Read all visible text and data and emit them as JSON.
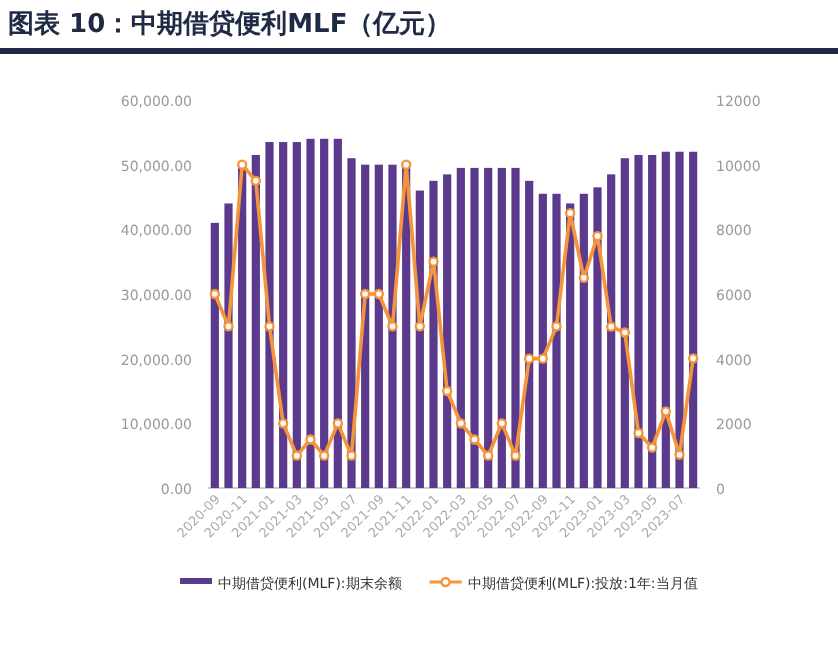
{
  "chart_data": {
    "type": "bar",
    "title": "图表 10：中期借贷便利MLF（亿元）",
    "categories": [
      "2020-09",
      null,
      "2020-11",
      null,
      "2021-01",
      null,
      "2021-03",
      null,
      "2021-05",
      null,
      "2021-07",
      null,
      "2021-09",
      null,
      "2021-11",
      null,
      "2022-01",
      null,
      "2022-03",
      null,
      "2022-05",
      null,
      "2022-07",
      null,
      "2022-09",
      null,
      "2022-11",
      null,
      "2023-01",
      null,
      "2023-03",
      null,
      "2023-05",
      null,
      "2023-07",
      null
    ],
    "series": [
      {
        "name": "中期借贷便利(MLF):期末余额",
        "color": "#5b3a8e",
        "values": [
          41000,
          44000,
          50500,
          51500,
          53500,
          53500,
          53500,
          54000,
          54000,
          54000,
          51000,
          50000,
          50000,
          50000,
          50000,
          46000,
          47500,
          48500,
          49500,
          49500,
          49500,
          49500,
          49500,
          47500,
          45500,
          45500,
          44000,
          45500,
          46500,
          48500,
          51000,
          51500,
          51500,
          52000,
          52000,
          52000
        ]
      },
      {
        "name": "中期借贷便利(MLF):投放:1年:当月值",
        "type": "line",
        "axis": "y2",
        "color": "#f5943a",
        "marker": "circle",
        "values": [
          6000,
          5000,
          10000,
          9500,
          5000,
          2000,
          1000,
          1500,
          1000,
          2000,
          1000,
          6000,
          6000,
          5000,
          10000,
          5000,
          7000,
          3000,
          2000,
          1500,
          1000,
          2000,
          1000,
          4000,
          4000,
          5000,
          8500,
          6500,
          7790,
          4990,
          4810,
          1700,
          1250,
          2370,
          1030,
          4010
        ]
      }
    ],
    "ylim": [
      0,
      60000
    ],
    "yticks": [
      {
        "value": 0,
        "label": "0.00"
      },
      {
        "value": 10000,
        "label": "10,000.00"
      },
      {
        "value": 20000,
        "label": "20,000.00"
      },
      {
        "value": 30000,
        "label": "30,000.00"
      },
      {
        "value": 40000,
        "label": "40,000.00"
      },
      {
        "value": 50000,
        "label": "50,000.00"
      },
      {
        "value": 60000,
        "label": "60,000.00"
      }
    ],
    "y2lim": [
      0,
      12000
    ],
    "y2ticks": [
      0,
      2000,
      4000,
      6000,
      8000,
      10000,
      12000
    ],
    "grid": false,
    "legend": "bottom"
  }
}
